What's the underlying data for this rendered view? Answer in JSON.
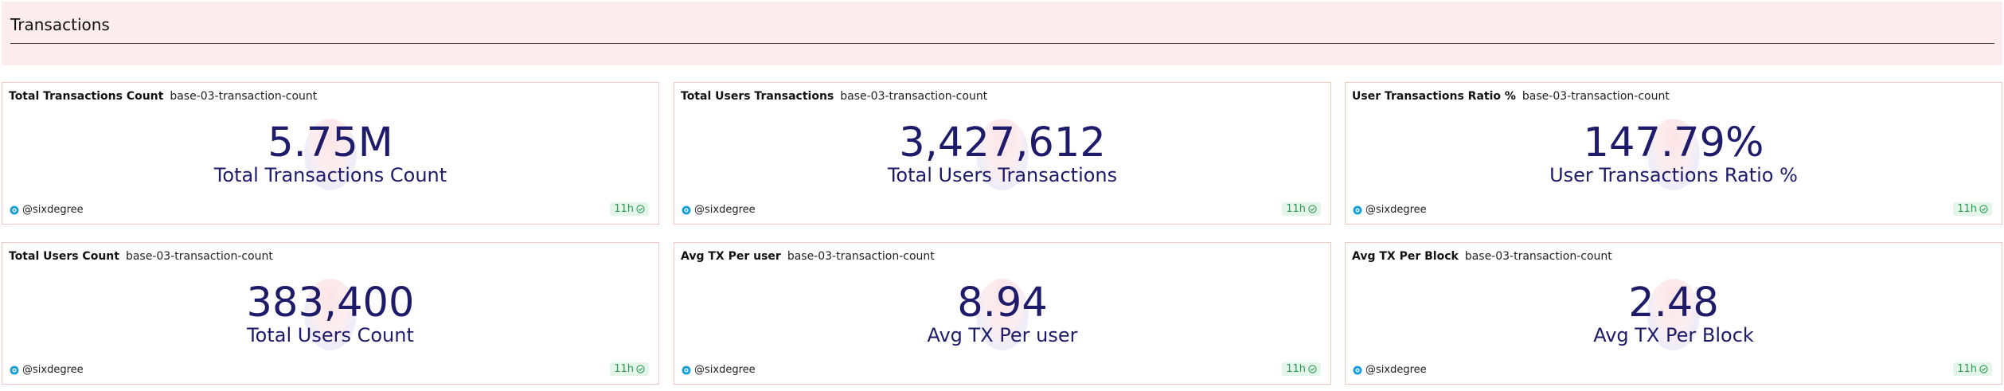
{
  "section": {
    "title": "Transactions"
  },
  "cards": [
    {
      "title": "Total Transactions Count",
      "query": "base-03-transaction-count",
      "value": "5.75M",
      "label": "Total Transactions Count",
      "author": "@sixdegree",
      "age": "11h"
    },
    {
      "title": "Total Users Transactions",
      "query": "base-03-transaction-count",
      "value": "3,427,612",
      "label": "Total Users Transactions",
      "author": "@sixdegree",
      "age": "11h"
    },
    {
      "title": "User Transactions Ratio %",
      "query": "base-03-transaction-count",
      "value": "147.79%",
      "label": "User Transactions Ratio %",
      "author": "@sixdegree",
      "age": "11h"
    },
    {
      "title": "Total Users Count",
      "query": "base-03-transaction-count",
      "value": "383,400",
      "label": "Total Users Count",
      "author": "@sixdegree",
      "age": "11h"
    },
    {
      "title": "Avg TX Per user",
      "query": "base-03-transaction-count",
      "value": "8.94",
      "label": "Avg TX Per user",
      "author": "@sixdegree",
      "age": "11h"
    },
    {
      "title": "Avg TX Per Block",
      "query": "base-03-transaction-count",
      "value": "2.48",
      "label": "Avg TX Per Block",
      "author": "@sixdegree",
      "age": "11h"
    }
  ],
  "icons": {
    "author": "avatar-icon",
    "status": "check-circle-icon"
  },
  "colors": {
    "header_bg": "#fdeced",
    "value": "#1f1b6b",
    "card_border": "#f2c8c5",
    "badge_bg": "#e4f6ea",
    "badge_text": "#2e9a56"
  }
}
